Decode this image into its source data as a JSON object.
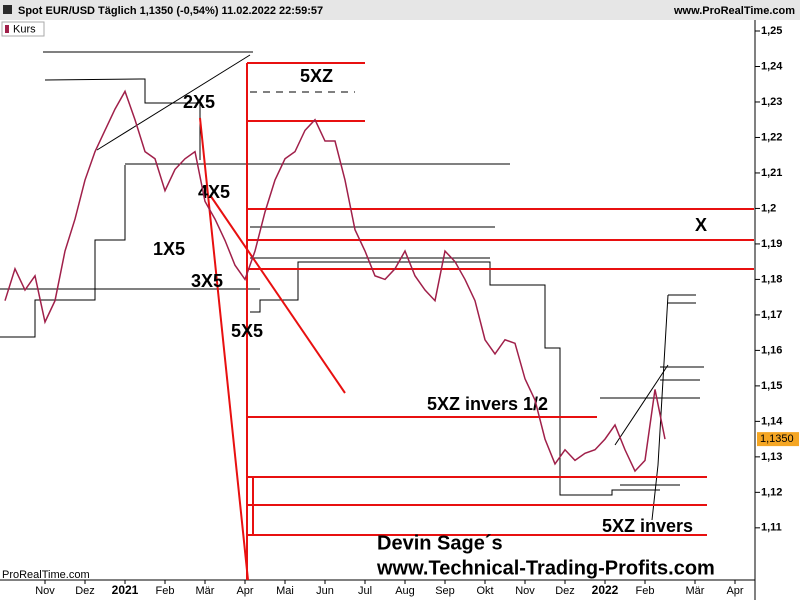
{
  "chart_data": {
    "type": "line",
    "title": "Spot EUR/USD Täglich 1,1350 (-0,54%) 11.02.2022 22:59:57",
    "source": "www.ProRealTime.com",
    "footer_source": "ProRealTime.com",
    "legend_label": "Kurs",
    "color": "#a0204a",
    "categories": [
      null,
      null,
      null,
      null,
      "Nov",
      null,
      null,
      null,
      "Dez",
      null,
      null,
      null,
      "2021",
      null,
      null,
      null,
      "Feb",
      null,
      null,
      null,
      "Mär",
      null,
      null,
      null,
      "Apr",
      null,
      null,
      null,
      "Mai",
      null,
      null,
      null,
      "Jun",
      null,
      null,
      null,
      "Jul",
      null,
      null,
      null,
      "Aug",
      null,
      null,
      null,
      "Sep",
      null,
      null,
      null,
      "Okt",
      null,
      null,
      null,
      "Nov",
      null,
      null,
      null,
      "Dez",
      null,
      null,
      null,
      "2022",
      null,
      null,
      null,
      "Feb",
      null,
      null,
      null,
      null,
      "Mär",
      null,
      null,
      null,
      "Apr"
    ],
    "values": [
      1.174,
      1.183,
      1.177,
      1.181,
      1.168,
      1.174,
      1.188,
      1.197,
      1.208,
      1.216,
      1.222,
      1.228,
      1.233,
      1.225,
      1.216,
      1.214,
      1.205,
      1.211,
      1.214,
      1.216,
      1.202,
      1.197,
      1.191,
      1.184,
      1.18,
      1.188,
      1.199,
      1.208,
      1.214,
      1.216,
      1.222,
      1.225,
      1.219,
      1.219,
      1.208,
      1.194,
      1.188,
      1.181,
      1.18,
      1.183,
      1.188,
      1.181,
      1.177,
      1.174,
      1.188,
      1.185,
      1.18,
      1.174,
      1.163,
      1.159,
      1.163,
      1.162,
      1.152,
      1.146,
      1.135,
      1.128,
      1.132,
      1.129,
      1.131,
      1.132,
      1.135,
      1.139,
      1.132,
      1.126,
      1.129,
      1.149,
      1.135,
      null,
      null,
      null,
      null,
      null,
      null,
      null
    ],
    "ylim": [
      1.0953,
      1.2531
    ],
    "yticks": [
      {
        "value": 1.11,
        "label": "1,11"
      },
      {
        "value": 1.12,
        "label": "1,12"
      },
      {
        "value": 1.13,
        "label": "1,13"
      },
      {
        "value": 1.14,
        "label": "1,14"
      },
      {
        "value": 1.15,
        "label": "1,15"
      },
      {
        "value": 1.16,
        "label": "1,16"
      },
      {
        "value": 1.17,
        "label": "1,17"
      },
      {
        "value": 1.18,
        "label": "1,18"
      },
      {
        "value": 1.19,
        "label": "1,19"
      },
      {
        "value": 1.2,
        "label": "1,2"
      },
      {
        "value": 1.21,
        "label": "1,21"
      },
      {
        "value": 1.22,
        "label": "1,22"
      },
      {
        "value": 1.23,
        "label": "1,23"
      },
      {
        "value": 1.24,
        "label": "1,24"
      },
      {
        "value": 1.25,
        "label": "1,25"
      }
    ],
    "last_price": {
      "value": 1.135,
      "label": "1,1350"
    },
    "annotations": [
      "5XZ",
      "2X5",
      "4X5",
      "1X5",
      "3X5",
      "5X5",
      "X",
      "5XZ invers 1/2",
      "5XZ invers",
      "Devin Sage´s",
      "www.Technical-Trading-Profits.com"
    ]
  }
}
